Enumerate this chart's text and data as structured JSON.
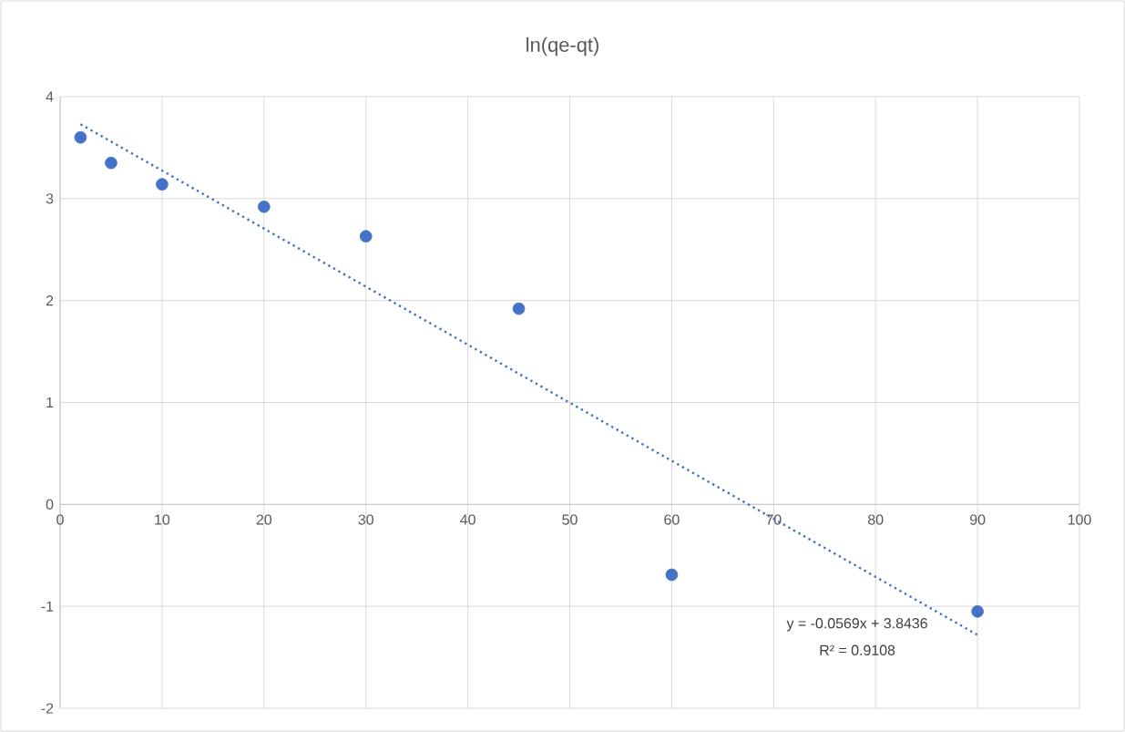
{
  "chart_data": {
    "type": "scatter",
    "title": "ln(qe-qt)",
    "xlim": [
      0,
      100
    ],
    "ylim": [
      -2,
      4
    ],
    "xticks": [
      0,
      10,
      20,
      30,
      40,
      50,
      60,
      70,
      80,
      90,
      100
    ],
    "yticks": [
      -2,
      -1,
      0,
      1,
      2,
      3,
      4
    ],
    "grid": true,
    "series": [
      {
        "color": "#4472c4",
        "marker": "circle",
        "x": [
          2,
          5,
          10,
          20,
          30,
          45,
          60,
          90
        ],
        "values": [
          3.6,
          3.35,
          3.14,
          2.92,
          2.63,
          1.92,
          -0.69,
          -1.05
        ]
      },
      {
        "type": "line",
        "line_style": "dotted",
        "color": "#4472c4",
        "x": [
          2,
          90
        ],
        "values": [
          3.73,
          -1.28
        ]
      }
    ],
    "annotations": [
      "y = -0.0569x + 3.8436",
      "R² = 0.9108"
    ]
  }
}
